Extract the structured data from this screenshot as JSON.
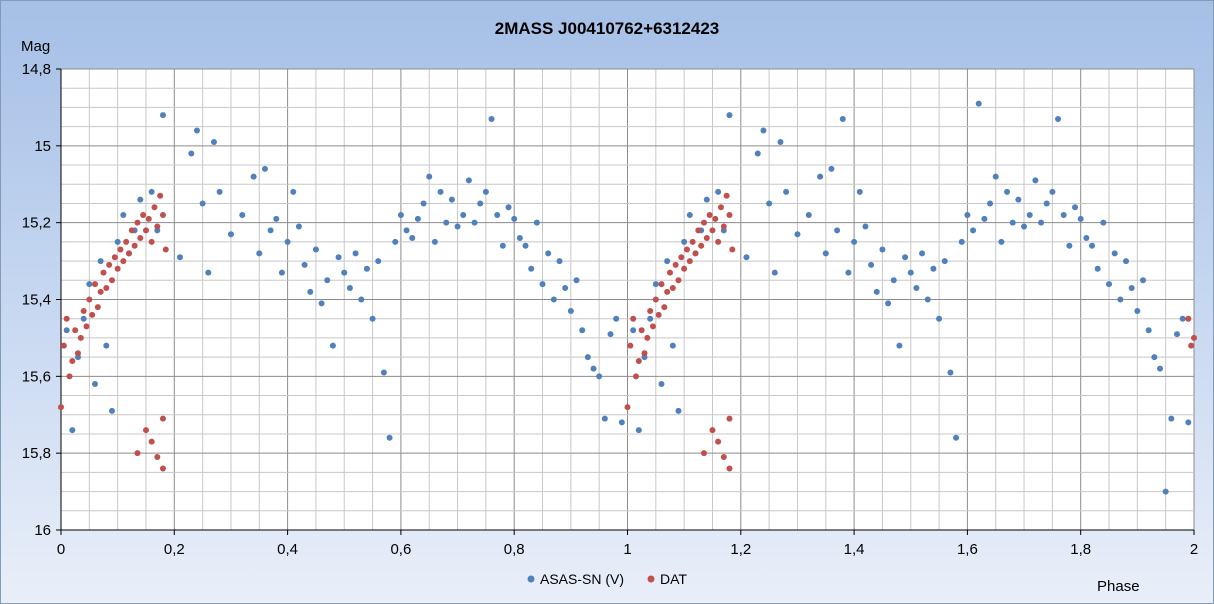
{
  "chart_data": {
    "type": "scatter",
    "title": "2MASS J00410762+6312423",
    "xlabel": "Phase",
    "ylabel": "Mag",
    "xlim": [
      0,
      2
    ],
    "ylim": [
      16,
      14.8
    ],
    "y_reversed": true,
    "x_ticks": [
      "0",
      "0,2",
      "0,4",
      "0,6",
      "0,8",
      "1",
      "1,2",
      "1,4",
      "1,6",
      "1,8",
      "2"
    ],
    "y_ticks": [
      "14,8",
      "15",
      "15,2",
      "15,4",
      "15,6",
      "15,8",
      "16"
    ],
    "grid": true,
    "legend_position": "bottom",
    "series": [
      {
        "name": "ASAS-SN (V)",
        "color": "#4f81bd",
        "points": [
          [
            0.01,
            15.48
          ],
          [
            0.02,
            15.74
          ],
          [
            0.03,
            15.55
          ],
          [
            0.04,
            15.45
          ],
          [
            0.05,
            15.36
          ],
          [
            0.06,
            15.62
          ],
          [
            0.07,
            15.3
          ],
          [
            0.08,
            15.52
          ],
          [
            0.09,
            15.69
          ],
          [
            0.1,
            15.25
          ],
          [
            0.11,
            15.18
          ],
          [
            0.12,
            15.28
          ],
          [
            0.13,
            15.22
          ],
          [
            0.14,
            15.14
          ],
          [
            0.16,
            15.12
          ],
          [
            0.17,
            15.22
          ],
          [
            0.18,
            14.92
          ],
          [
            0.21,
            15.29
          ],
          [
            0.23,
            15.02
          ],
          [
            0.24,
            14.96
          ],
          [
            0.25,
            15.15
          ],
          [
            0.26,
            15.33
          ],
          [
            0.27,
            14.99
          ],
          [
            0.28,
            15.12
          ],
          [
            0.3,
            15.23
          ],
          [
            0.32,
            15.18
          ],
          [
            0.34,
            15.08
          ],
          [
            0.35,
            15.28
          ],
          [
            0.36,
            15.06
          ],
          [
            0.37,
            15.22
          ],
          [
            0.38,
            15.19
          ],
          [
            0.39,
            15.33
          ],
          [
            0.4,
            15.25
          ],
          [
            0.41,
            15.12
          ],
          [
            0.42,
            15.21
          ],
          [
            0.43,
            15.31
          ],
          [
            0.44,
            15.38
          ],
          [
            0.45,
            15.27
          ],
          [
            0.46,
            15.41
          ],
          [
            0.47,
            15.35
          ],
          [
            0.48,
            15.52
          ],
          [
            0.49,
            15.29
          ],
          [
            0.5,
            15.33
          ],
          [
            0.51,
            15.37
          ],
          [
            0.52,
            15.28
          ],
          [
            0.53,
            15.4
          ],
          [
            0.54,
            15.32
          ],
          [
            0.55,
            15.45
          ],
          [
            0.56,
            15.3
          ],
          [
            0.57,
            15.59
          ],
          [
            0.58,
            15.76
          ],
          [
            0.59,
            15.25
          ],
          [
            0.6,
            15.18
          ],
          [
            0.61,
            15.22
          ],
          [
            0.62,
            15.24
          ],
          [
            0.63,
            15.19
          ],
          [
            0.64,
            15.15
          ],
          [
            0.65,
            15.08
          ],
          [
            0.66,
            15.25
          ],
          [
            0.67,
            15.12
          ],
          [
            0.68,
            15.2
          ],
          [
            0.69,
            15.14
          ],
          [
            0.7,
            15.21
          ],
          [
            0.71,
            15.18
          ],
          [
            0.72,
            15.09
          ],
          [
            0.73,
            15.2
          ],
          [
            0.74,
            15.15
          ],
          [
            0.75,
            15.12
          ],
          [
            0.76,
            14.93
          ],
          [
            0.77,
            15.18
          ],
          [
            0.78,
            15.26
          ],
          [
            0.79,
            15.16
          ],
          [
            0.8,
            15.19
          ],
          [
            0.81,
            15.24
          ],
          [
            0.82,
            15.26
          ],
          [
            0.83,
            15.32
          ],
          [
            0.84,
            15.2
          ],
          [
            0.85,
            15.36
          ],
          [
            0.86,
            15.28
          ],
          [
            0.87,
            15.4
          ],
          [
            0.88,
            15.3
          ],
          [
            0.89,
            15.37
          ],
          [
            0.9,
            15.43
          ],
          [
            0.91,
            15.35
          ],
          [
            0.92,
            15.48
          ],
          [
            0.93,
            15.55
          ],
          [
            0.94,
            15.58
          ],
          [
            0.95,
            15.6
          ],
          [
            0.96,
            15.71
          ],
          [
            0.97,
            15.49
          ],
          [
            0.98,
            15.45
          ],
          [
            0.99,
            15.72
          ],
          [
            1.01,
            15.48
          ],
          [
            1.02,
            15.74
          ],
          [
            1.03,
            15.55
          ],
          [
            1.04,
            15.45
          ],
          [
            1.05,
            15.36
          ],
          [
            1.06,
            15.62
          ],
          [
            1.07,
            15.3
          ],
          [
            1.08,
            15.52
          ],
          [
            1.09,
            15.69
          ],
          [
            1.1,
            15.25
          ],
          [
            1.11,
            15.18
          ],
          [
            1.12,
            15.28
          ],
          [
            1.13,
            15.22
          ],
          [
            1.14,
            15.14
          ],
          [
            1.16,
            15.12
          ],
          [
            1.17,
            15.22
          ],
          [
            1.18,
            14.92
          ],
          [
            1.21,
            15.29
          ],
          [
            1.23,
            15.02
          ],
          [
            1.24,
            14.96
          ],
          [
            1.25,
            15.15
          ],
          [
            1.26,
            15.33
          ],
          [
            1.27,
            14.99
          ],
          [
            1.28,
            15.12
          ],
          [
            1.3,
            15.23
          ],
          [
            1.32,
            15.18
          ],
          [
            1.34,
            15.08
          ],
          [
            1.35,
            15.28
          ],
          [
            1.36,
            15.06
          ],
          [
            1.37,
            15.22
          ],
          [
            1.38,
            14.93
          ],
          [
            1.39,
            15.33
          ],
          [
            1.4,
            15.25
          ],
          [
            1.41,
            15.12
          ],
          [
            1.42,
            15.21
          ],
          [
            1.43,
            15.31
          ],
          [
            1.44,
            15.38
          ],
          [
            1.45,
            15.27
          ],
          [
            1.46,
            15.41
          ],
          [
            1.47,
            15.35
          ],
          [
            1.48,
            15.52
          ],
          [
            1.49,
            15.29
          ],
          [
            1.5,
            15.33
          ],
          [
            1.51,
            15.37
          ],
          [
            1.52,
            15.28
          ],
          [
            1.53,
            15.4
          ],
          [
            1.54,
            15.32
          ],
          [
            1.55,
            15.45
          ],
          [
            1.56,
            15.3
          ],
          [
            1.57,
            15.59
          ],
          [
            1.58,
            15.76
          ],
          [
            1.59,
            15.25
          ],
          [
            1.6,
            15.18
          ],
          [
            1.61,
            15.22
          ],
          [
            1.62,
            14.89
          ],
          [
            1.63,
            15.19
          ],
          [
            1.64,
            15.15
          ],
          [
            1.65,
            15.08
          ],
          [
            1.66,
            15.25
          ],
          [
            1.67,
            15.12
          ],
          [
            1.68,
            15.2
          ],
          [
            1.69,
            15.14
          ],
          [
            1.7,
            15.21
          ],
          [
            1.71,
            15.18
          ],
          [
            1.72,
            15.09
          ],
          [
            1.73,
            15.2
          ],
          [
            1.74,
            15.15
          ],
          [
            1.75,
            15.12
          ],
          [
            1.76,
            14.93
          ],
          [
            1.77,
            15.18
          ],
          [
            1.78,
            15.26
          ],
          [
            1.79,
            15.16
          ],
          [
            1.8,
            15.19
          ],
          [
            1.81,
            15.24
          ],
          [
            1.82,
            15.26
          ],
          [
            1.83,
            15.32
          ],
          [
            1.84,
            15.2
          ],
          [
            1.85,
            15.36
          ],
          [
            1.86,
            15.28
          ],
          [
            1.87,
            15.4
          ],
          [
            1.88,
            15.3
          ],
          [
            1.89,
            15.37
          ],
          [
            1.9,
            15.43
          ],
          [
            1.91,
            15.35
          ],
          [
            1.92,
            15.48
          ],
          [
            1.93,
            15.55
          ],
          [
            1.94,
            15.58
          ],
          [
            1.95,
            15.9
          ],
          [
            1.96,
            15.71
          ],
          [
            1.97,
            15.49
          ],
          [
            1.98,
            15.45
          ],
          [
            1.99,
            15.72
          ]
        ]
      },
      {
        "name": "DAT",
        "color": "#c0504d",
        "points": [
          [
            0.0,
            15.68
          ],
          [
            0.005,
            15.52
          ],
          [
            0.01,
            15.45
          ],
          [
            0.015,
            15.6
          ],
          [
            0.02,
            15.56
          ],
          [
            0.025,
            15.48
          ],
          [
            0.03,
            15.54
          ],
          [
            0.035,
            15.5
          ],
          [
            0.04,
            15.43
          ],
          [
            0.045,
            15.47
          ],
          [
            0.05,
            15.4
          ],
          [
            0.055,
            15.44
          ],
          [
            0.06,
            15.36
          ],
          [
            0.065,
            15.42
          ],
          [
            0.07,
            15.38
          ],
          [
            0.075,
            15.33
          ],
          [
            0.08,
            15.37
          ],
          [
            0.085,
            15.31
          ],
          [
            0.09,
            15.35
          ],
          [
            0.095,
            15.29
          ],
          [
            0.1,
            15.32
          ],
          [
            0.105,
            15.27
          ],
          [
            0.11,
            15.3
          ],
          [
            0.115,
            15.25
          ],
          [
            0.12,
            15.28
          ],
          [
            0.125,
            15.22
          ],
          [
            0.13,
            15.26
          ],
          [
            0.135,
            15.2
          ],
          [
            0.14,
            15.24
          ],
          [
            0.145,
            15.18
          ],
          [
            0.15,
            15.22
          ],
          [
            0.155,
            15.19
          ],
          [
            0.16,
            15.25
          ],
          [
            0.165,
            15.16
          ],
          [
            0.17,
            15.21
          ],
          [
            0.175,
            15.13
          ],
          [
            0.18,
            15.18
          ],
          [
            0.185,
            15.27
          ],
          [
            0.135,
            15.8
          ],
          [
            0.15,
            15.74
          ],
          [
            0.16,
            15.77
          ],
          [
            0.17,
            15.81
          ],
          [
            0.18,
            15.71
          ],
          [
            0.18,
            15.84
          ],
          [
            1.0,
            15.68
          ],
          [
            1.005,
            15.52
          ],
          [
            1.01,
            15.45
          ],
          [
            1.015,
            15.6
          ],
          [
            1.02,
            15.56
          ],
          [
            1.025,
            15.48
          ],
          [
            1.03,
            15.54
          ],
          [
            1.035,
            15.5
          ],
          [
            1.04,
            15.43
          ],
          [
            1.045,
            15.47
          ],
          [
            1.05,
            15.4
          ],
          [
            1.055,
            15.44
          ],
          [
            1.06,
            15.36
          ],
          [
            1.065,
            15.42
          ],
          [
            1.07,
            15.38
          ],
          [
            1.075,
            15.33
          ],
          [
            1.08,
            15.37
          ],
          [
            1.085,
            15.31
          ],
          [
            1.09,
            15.35
          ],
          [
            1.095,
            15.29
          ],
          [
            1.1,
            15.32
          ],
          [
            1.105,
            15.27
          ],
          [
            1.11,
            15.3
          ],
          [
            1.115,
            15.25
          ],
          [
            1.12,
            15.28
          ],
          [
            1.125,
            15.22
          ],
          [
            1.13,
            15.26
          ],
          [
            1.135,
            15.2
          ],
          [
            1.14,
            15.24
          ],
          [
            1.145,
            15.18
          ],
          [
            1.15,
            15.22
          ],
          [
            1.155,
            15.19
          ],
          [
            1.16,
            15.25
          ],
          [
            1.165,
            15.16
          ],
          [
            1.17,
            15.21
          ],
          [
            1.175,
            15.13
          ],
          [
            1.18,
            15.18
          ],
          [
            1.185,
            15.27
          ],
          [
            1.135,
            15.8
          ],
          [
            1.15,
            15.74
          ],
          [
            1.16,
            15.77
          ],
          [
            1.17,
            15.81
          ],
          [
            1.18,
            15.71
          ],
          [
            1.18,
            15.84
          ],
          [
            1.99,
            15.45
          ],
          [
            1.995,
            15.52
          ],
          [
            2.0,
            15.5
          ]
        ]
      }
    ]
  }
}
